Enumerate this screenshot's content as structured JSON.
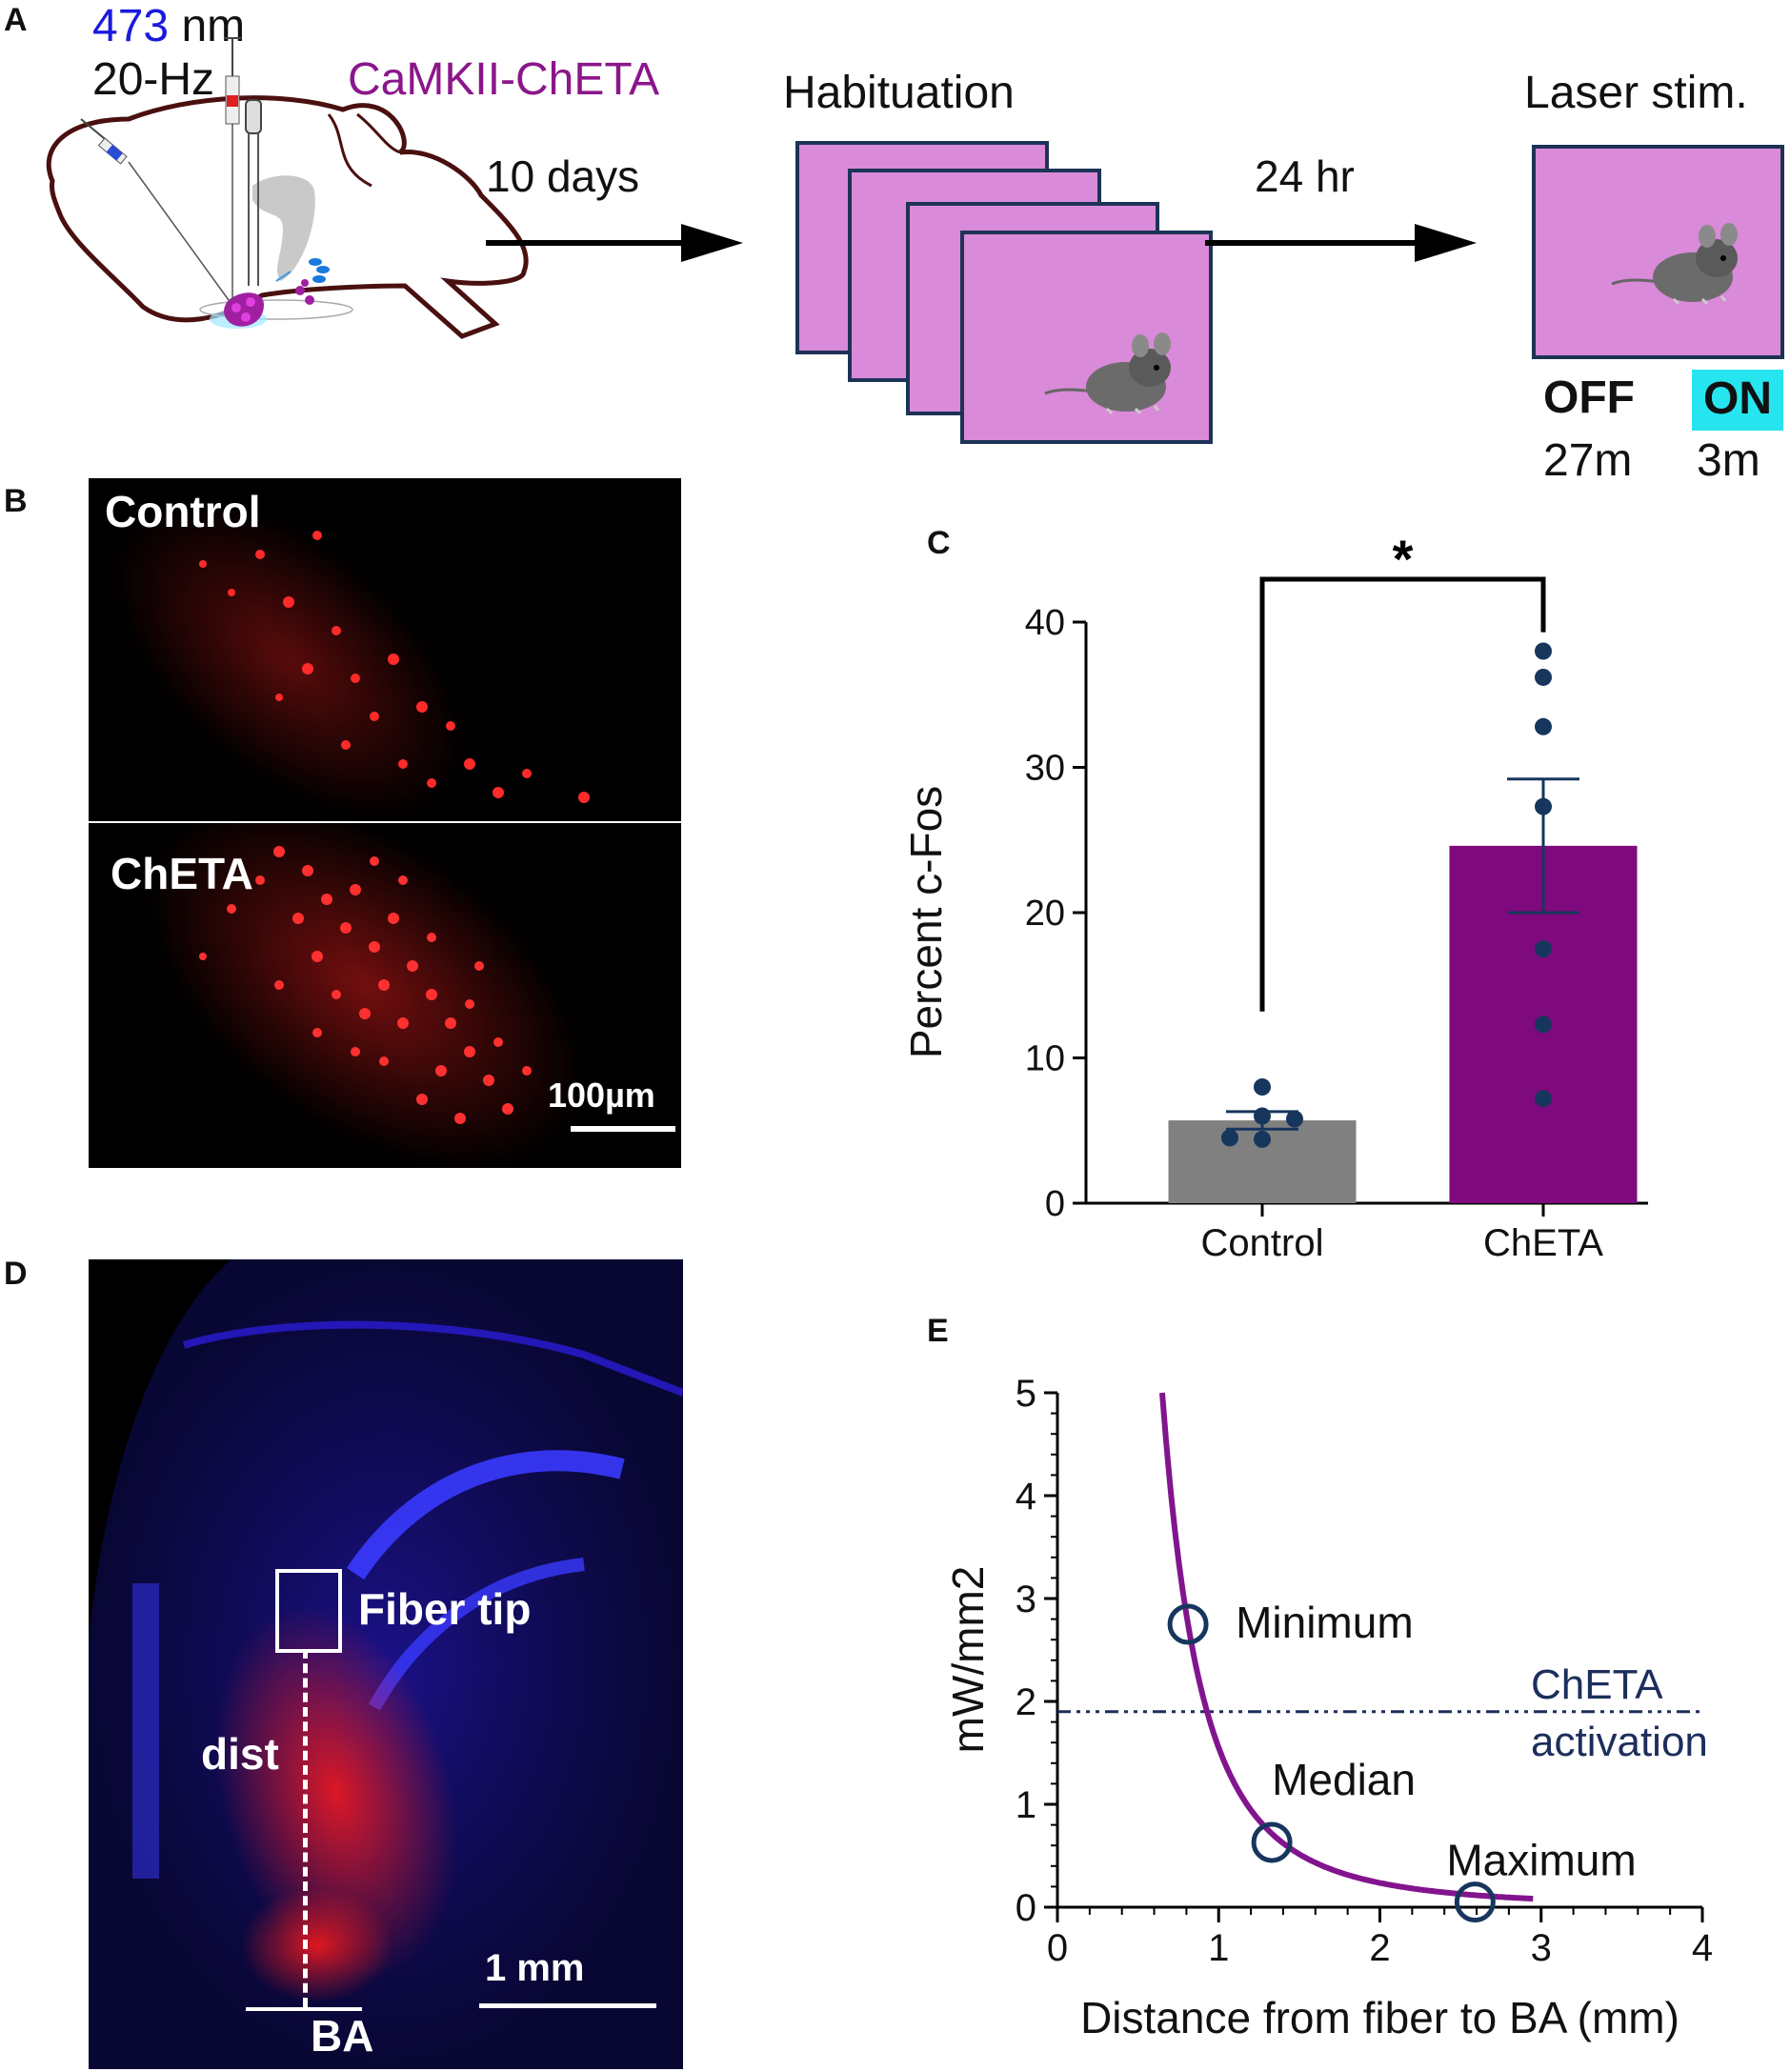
{
  "panel_letters": {
    "a": "A",
    "b": "B",
    "c": "C",
    "d": "D",
    "e": "E"
  },
  "colors": {
    "cage_fill": "#d98ad8",
    "cage_border": "#1c3356",
    "wavelength_blue": "#1a1adc",
    "construct_purple": "#8b168b",
    "on_highlight": "#27e5ef",
    "control_bar": "#808080",
    "cheta_bar": "#7e0a7e",
    "dot_navy": "#17365d",
    "curve_purple": "#82158e",
    "threshold_navy": "#1c2e5c",
    "micro_red": "#ff2020",
    "micro_blue": "#2a1bd6"
  },
  "panelA": {
    "wavelength_value": "473",
    "wavelength_unit": "nm",
    "frequency": "20-Hz",
    "construct": "CaMKII-ChETA",
    "delay1": "10 days",
    "phase1": "Habituation",
    "delay2": "24 hr",
    "phase2": "Laser stim.",
    "off_label": "OFF",
    "on_label": "ON",
    "off_duration": "27m",
    "on_duration": "3m",
    "icons": [
      "brain-diagram",
      "mouse-photo"
    ]
  },
  "panelB": {
    "label_top": "Control",
    "label_bottom": "ChETA",
    "scalebar": "100µm"
  },
  "panelD": {
    "label_fiber": "Fiber tip",
    "label_dist": "dist",
    "label_region": "BA",
    "scalebar": "1 mm"
  },
  "chart_data": [
    {
      "type": "bar",
      "panel": "C",
      "categories": [
        "Control",
        "ChETA"
      ],
      "values": [
        5.7,
        24.6
      ],
      "sem": [
        0.6,
        4.6
      ],
      "points": [
        [
          8.0,
          6.0,
          5.8,
          4.5,
          4.4
        ],
        [
          38.0,
          36.2,
          32.8,
          27.3,
          17.5,
          12.3,
          7.2
        ]
      ],
      "ylabel": "Percent c-Fos",
      "ylim": [
        0,
        40
      ],
      "yticks": [
        0,
        10,
        20,
        30,
        40
      ],
      "significance": "*"
    },
    {
      "type": "line",
      "panel": "E",
      "xlabel": "Distance from fiber to BA (mm)",
      "ylabel": "mW/mm2",
      "xlim": [
        0,
        4
      ],
      "ylim": [
        0,
        5
      ],
      "xticks": [
        0,
        1,
        2,
        3,
        4
      ],
      "yticks": [
        0,
        1,
        2,
        3,
        4,
        5
      ],
      "curve": {
        "x_start": 0.65,
        "x_end": 2.95,
        "y_at_start": 5.0
      },
      "threshold": {
        "y": 1.9,
        "label_line1": "ChETA",
        "label_line2": "activation"
      },
      "markers": [
        {
          "label": "Minimum",
          "x": 0.81,
          "y": 2.75
        },
        {
          "label": "Median",
          "x": 1.33,
          "y": 0.63
        },
        {
          "label": "Maximum",
          "x": 2.59,
          "y": 0.05
        }
      ]
    }
  ]
}
